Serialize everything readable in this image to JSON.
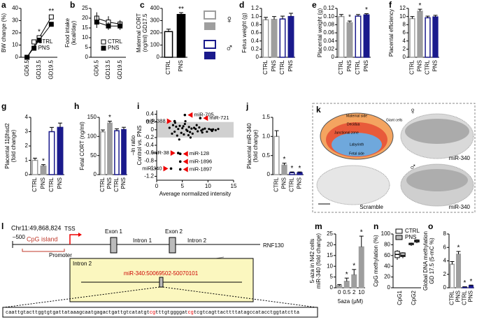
{
  "chart_data": [
    {
      "type": "line",
      "panel": "a",
      "ylabel": [
        "BW change (%)"
      ],
      "categories": [
        "GD6.5",
        "GD13.5",
        "GD19.5"
      ],
      "ylim": [
        0,
        40
      ],
      "yticks": [
        0,
        10,
        20,
        30,
        40
      ],
      "legend": "lower right",
      "series": [
        {
          "name": "CTRL",
          "color": "#000000",
          "filled": false,
          "values": [
            0,
            16,
            33
          ]
        },
        {
          "name": "PNS",
          "color": "#000000",
          "filled": true,
          "values": [
            0,
            14,
            27
          ]
        }
      ],
      "stars": [
        null,
        "*",
        "**"
      ]
    },
    {
      "type": "line",
      "panel": "b",
      "ylabel": [
        "Food intake",
        "(kcal/day)"
      ],
      "categories": [
        "GD6.5",
        "GD13.5",
        "GD19.5"
      ],
      "ylim": [
        0,
        25
      ],
      "yticks": [
        0,
        5,
        10,
        15,
        20,
        25
      ],
      "legend": "lower right",
      "series": [
        {
          "name": "CTRL",
          "color": "#000000",
          "filled": false,
          "values": [
            20,
            18,
            17
          ],
          "errors": [
            3,
            3,
            2
          ]
        },
        {
          "name": "PNS",
          "color": "#000000",
          "filled": true,
          "values": [
            18,
            16,
            16
          ],
          "errors": [
            3,
            2,
            2
          ]
        }
      ]
    },
    {
      "type": "bar",
      "panel": "c",
      "ylabel": [
        "Maternal CORT",
        "(ng/ml) GD17.5"
      ],
      "categories": [
        "CTRL",
        "PNS"
      ],
      "values": [
        210,
        350
      ],
      "errors": [
        20,
        15
      ],
      "colors": [
        "#000000",
        "#000000"
      ],
      "filled": [
        false,
        true
      ],
      "ylim": [
        0,
        400
      ],
      "yticks": [
        0,
        100,
        200,
        300,
        400
      ],
      "stars": [
        null,
        "**"
      ]
    },
    {
      "type": "bar",
      "panel": "d",
      "ylabel": [
        "Fetus weight (g)"
      ],
      "categories": [
        "CTRL",
        "PNS",
        "CTRL",
        "PNS"
      ],
      "values": [
        0.92,
        0.93,
        0.94,
        1.0
      ],
      "errors": [
        0.06,
        0.07,
        0.07,
        0.08
      ],
      "colors": [
        "#9e9e9e",
        "#9e9e9e",
        "#1a1a8c",
        "#1a1a8c"
      ],
      "filled": [
        false,
        true,
        false,
        true
      ],
      "ylim": [
        0,
        1.2
      ],
      "yticks": [
        0,
        0.2,
        0.4,
        0.6,
        0.8,
        {
          "value": 1,
          "label": "1.0"
        },
        1.2
      ]
    },
    {
      "type": "bar",
      "panel": "e",
      "ylabel": [
        "Placental weight (g)"
      ],
      "categories": [
        "CTRL",
        "PNS",
        "CTRL",
        "PNS"
      ],
      "values": [
        0.1,
        0.085,
        0.101,
        0.104
      ],
      "errors": [
        0.005,
        0.004,
        0.004,
        0.003
      ],
      "colors": [
        "#9e9e9e",
        "#9e9e9e",
        "#1a1a8c",
        "#1a1a8c"
      ],
      "filled": [
        false,
        true,
        false,
        true
      ],
      "ylim": [
        0,
        0.12
      ],
      "yticks": [
        0,
        0.02,
        0.04,
        0.06,
        0.08,
        {
          "value": 0.1,
          "label": "0.10"
        },
        0.12
      ],
      "stars": [
        null,
        "*",
        null,
        "*"
      ]
    },
    {
      "type": "bar",
      "panel": "f",
      "ylabel": [
        "Placental efficiency"
      ],
      "categories": [
        "CTRL",
        "PNS",
        "CTRL",
        "PNS"
      ],
      "values": [
        9.5,
        11.3,
        9.7,
        9.9
      ],
      "errors": [
        0.5,
        0.5,
        0.4,
        0.4
      ],
      "colors": [
        "#9e9e9e",
        "#9e9e9e",
        "#1a1a8c",
        "#1a1a8c"
      ],
      "filled": [
        false,
        true,
        false,
        true
      ],
      "ylim": [
        0,
        12
      ],
      "yticks": [
        0,
        2,
        4,
        6,
        8,
        10,
        12
      ],
      "stars": [
        null,
        "*",
        null,
        null
      ]
    },
    {
      "type": "bar",
      "panel": "g",
      "ylabel": [
        "Placental 11βhsd2",
        "(fold change)"
      ],
      "categories": [
        "CTRL",
        "PNS",
        "CTRL",
        "PNS"
      ],
      "values": [
        1.0,
        0.6,
        3.0,
        3.3
      ],
      "errors": [
        0.15,
        0.1,
        0.3,
        0.3
      ],
      "colors": [
        "#9e9e9e",
        "#9e9e9e",
        "#1a1a8c",
        "#1a1a8c"
      ],
      "filled": [
        false,
        true,
        false,
        true
      ],
      "ylim": [
        0,
        4
      ],
      "yticks": [
        0,
        1,
        2,
        3,
        4
      ],
      "stars": [
        null,
        "*",
        null,
        null
      ]
    },
    {
      "type": "bar",
      "panel": "h",
      "ylabel": [
        "Fetal CORT (ng/ml)"
      ],
      "categories": [
        "CTRL",
        "PNS",
        "CTRL",
        "PNS"
      ],
      "values": [
        112,
        135,
        115,
        118
      ],
      "errors": [
        5,
        5,
        5,
        6
      ],
      "colors": [
        "#9e9e9e",
        "#9e9e9e",
        "#1a1a8c",
        "#1a1a8c"
      ],
      "filled": [
        false,
        true,
        false,
        true
      ],
      "ylim": [
        0,
        150
      ],
      "yticks": [
        0,
        50,
        100,
        150
      ],
      "stars": [
        null,
        "*",
        null,
        null
      ]
    },
    {
      "type": "scatter",
      "panel": "i",
      "ylabel": [
        "–ln ratio",
        "Control vs. PNS"
      ],
      "xlabel": "Average normalized intensity",
      "xlim": [
        0,
        15
      ],
      "xticks": [
        0,
        5,
        10,
        15
      ],
      "ylim": [
        -1.3,
        0.5
      ],
      "yticks": [
        0.4,
        0.2,
        0,
        -0.2,
        -0.4,
        -0.6,
        -0.8,
        -1,
        -1.2
      ],
      "band": [
        -0.2,
        0.2
      ],
      "color": "#000000",
      "x": [
        2.5,
        3,
        3.2,
        3.5,
        3.8,
        4,
        4.2,
        4.5,
        4.8,
        5,
        5.3,
        5.5,
        5.8,
        6,
        6.3,
        6.5,
        6.8,
        7,
        7.3,
        7.6,
        8,
        8.3,
        8.7,
        9,
        9.4,
        9.8,
        10.2,
        10.6,
        11,
        11.5,
        12,
        4.4,
        5.6,
        6.6,
        7.8,
        3.6,
        8.9,
        10.8,
        5.2,
        6.2
      ],
      "y": [
        0.05,
        -0.1,
        0.12,
        -0.05,
        0.08,
        -0.15,
        0.02,
        0.1,
        -0.08,
        0.04,
        -0.12,
        0.15,
        0,
        -0.03,
        0.07,
        -0.06,
        0.03,
        -0.1,
        0.05,
        0.02,
        -0.04,
        0.06,
        -0.02,
        0.01,
        0.03,
        -0.05,
        0.02,
        0,
        0.01,
        -0.01,
        0.02,
        -0.25,
        0.22,
        -0.2,
        0.12,
        0.18,
        -0.07,
        -0.03,
        0.09,
        -0.14
      ],
      "labeled": [
        {
          "text": "miR-705",
          "x": 5.5,
          "y": 0.38
        },
        {
          "text": "miR-388",
          "x": 3.5,
          "y": 0.22
        },
        {
          "text": "miR-721",
          "x": 8.5,
          "y": 0.3
        },
        {
          "text": "miR-38",
          "x": 4.2,
          "y": -0.6
        },
        {
          "text": "miR-128",
          "x": 4.6,
          "y": -0.62
        },
        {
          "text": "miR-1896",
          "x": 4.6,
          "y": -0.82
        },
        {
          "text": "miR-1897",
          "x": 4.6,
          "y": -1.02
        },
        {
          "text": "miR-340",
          "x": 2.8,
          "y": -1.0
        }
      ]
    },
    {
      "type": "bar",
      "panel": "j",
      "ylabel": [
        "Placental miR-340",
        "(fold change)"
      ],
      "categories": [
        "CTRL",
        "PNS",
        "CTRL",
        "PNS"
      ],
      "values": [
        1.0,
        0.25,
        0.05,
        0.05
      ],
      "errors": [
        0.15,
        0.05,
        0.02,
        0.02
      ],
      "colors": [
        "#9e9e9e",
        "#9e9e9e",
        "#1a1a8c",
        "#1a1a8c"
      ],
      "filled": [
        false,
        true,
        false,
        true
      ],
      "ylim": [
        0,
        1.5
      ],
      "yticks": [
        0,
        0.5,
        {
          "value": 1,
          "label": "1.0"
        },
        1.5
      ],
      "stars": [
        null,
        "*",
        "*",
        "*"
      ]
    },
    {
      "type": "bar",
      "panel": "m",
      "ylabel": [
        "5-aza in N42 cells",
        "miR-340 (fold change)"
      ],
      "xlabel": "5aza (μM)",
      "categories": [
        "0",
        "0.5",
        "2",
        "10"
      ],
      "values": [
        1,
        3,
        6,
        19
      ],
      "errors": [
        0.5,
        1.5,
        2.5,
        5
      ],
      "colors": [
        "#9e9e9e",
        "#9e9e9e",
        "#9e9e9e",
        "#9e9e9e"
      ],
      "filled": [
        true,
        true,
        true,
        true
      ],
      "ylim": [
        0,
        25
      ],
      "yticks": [
        0,
        5,
        10,
        15,
        20,
        25
      ],
      "stars": [
        null,
        "*",
        "*",
        "*"
      ],
      "horizontal_labels": true
    },
    {
      "type": "box",
      "panel": "n",
      "ylabel": [
        "CpG methylation (%)"
      ],
      "categories": [
        "CpG1",
        "CpG2"
      ],
      "ylim": [
        0,
        100
      ],
      "yticks": [
        0,
        20,
        40,
        60,
        80,
        100
      ],
      "series": [
        {
          "name": "CTRL",
          "fill": "#ffffff",
          "boxes": [
            [
              52,
              56,
              62,
              68,
              70
            ],
            [
              78,
              80,
              82,
              83,
              84
            ]
          ]
        },
        {
          "name": "PNS",
          "fill": "#bdbdbd",
          "boxes": [
            [
              55,
              58,
              60,
              65,
              66
            ],
            [
              83,
              85,
              87,
              89,
              90
            ]
          ]
        }
      ]
    },
    {
      "type": "bar",
      "panel": "o",
      "ylabel": [
        "Global DNA methylation",
        "GD 17.5 (5-mC %)"
      ],
      "categories": [
        "CTRL",
        "PNS",
        "CTRL",
        "PNS"
      ],
      "values": [
        3.5,
        5.0,
        0.1,
        0.3
      ],
      "errors": [
        0.4,
        0.4,
        0.05,
        0.1
      ],
      "colors": [
        "#9e9e9e",
        "#9e9e9e",
        "#1a1a8c",
        "#1a1a8c"
      ],
      "filled": [
        false,
        true,
        false,
        true
      ],
      "ylim": [
        0,
        8
      ],
      "yticks": [
        0,
        2,
        4,
        6,
        8
      ],
      "stars": [
        null,
        "*",
        "*",
        "*"
      ]
    }
  ],
  "sex_legend": {
    "female": "♀",
    "male": "♂"
  },
  "histology": {
    "panel": "k",
    "schematic": [
      "Maternal side",
      "Giant cells",
      "Decidua",
      "Junctional zone",
      "Labyrinth",
      "Fetal side"
    ],
    "female": "♀",
    "male": "♂",
    "probe_female": "miR-340",
    "scramble": "Scramble",
    "probe_male": "miR-340"
  },
  "gene_diagram": {
    "panel": "l",
    "locus": "Chr11:49,868,824",
    "start": "–500",
    "cpg": "CpG island",
    "tss": "TSS",
    "exon1": "Exon 1",
    "exon2": "Exon 2",
    "intron1": "Intron 1",
    "intron2": "Intron 2",
    "promoter": "Promoter",
    "gene": "RNF130",
    "inset_title": "Intron 2",
    "mirna": "miR-340:50069502-50070101",
    "sequence": [
      {
        "text": "caattgtacttggtgtgattataaagcaatgagactgattgtcatatgt",
        "cpg": false
      },
      {
        "text": "cg",
        "cpg": true
      },
      {
        "text": "tttgtggggat",
        "cpg": false
      },
      {
        "text": "cg",
        "cpg": true
      },
      {
        "text": "tcgtcagttacttttatagccatacctggtatctta",
        "cpg": false
      }
    ]
  }
}
